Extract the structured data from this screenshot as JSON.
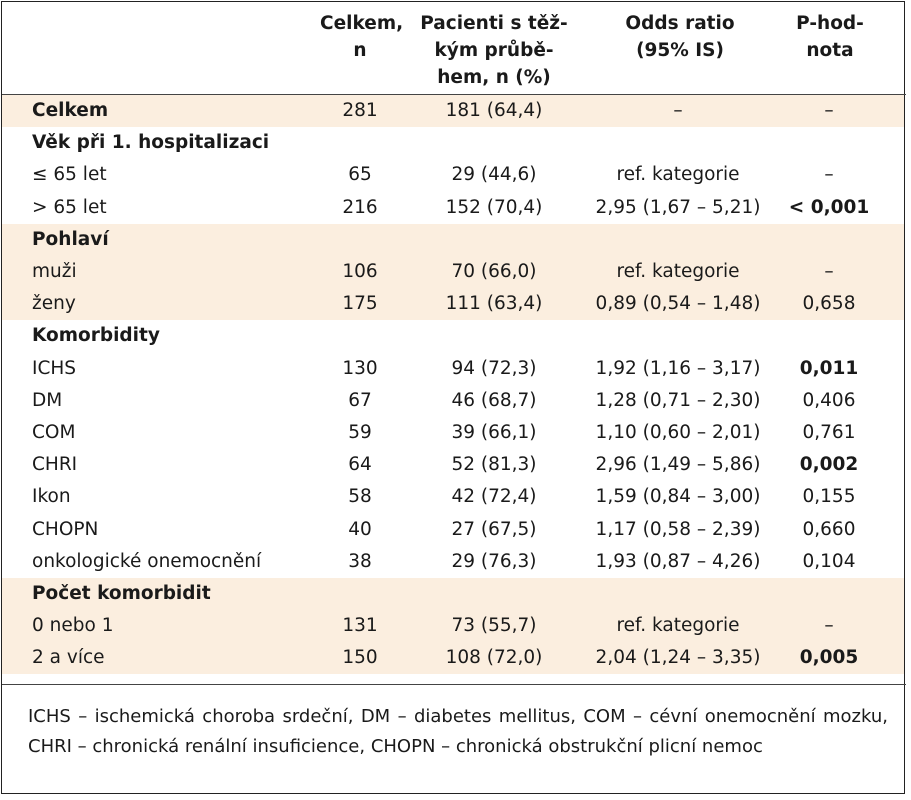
{
  "table": {
    "headers": {
      "col1": "Celkem,\nn",
      "col2": "Pacienti s těž-\nkým průbě-\nhem, n (%)",
      "col3": "Odds ratio\n(95% IS)",
      "col4": "P-hod-\nnota"
    },
    "rows": [
      {
        "label": "Celkem",
        "section": true,
        "shaded": true,
        "n": "281",
        "severe": "181 (64,4)",
        "or": "–",
        "p": "–",
        "p_bold": false
      },
      {
        "label": "Věk při 1. hospitalizaci",
        "section": true,
        "shaded": false,
        "n": "",
        "severe": "",
        "or": "",
        "p": "",
        "p_bold": false
      },
      {
        "label": "≤ 65 let",
        "section": false,
        "shaded": false,
        "n": "65",
        "severe": "29 (44,6)",
        "or": "ref. kategorie",
        "p": "–",
        "p_bold": false
      },
      {
        "label": "> 65 let",
        "section": false,
        "shaded": false,
        "n": "216",
        "severe": "152 (70,4)",
        "or": "2,95 (1,67 – 5,21)",
        "p": "< 0,001",
        "p_bold": true
      },
      {
        "label": "Pohlaví",
        "section": true,
        "shaded": true,
        "n": "",
        "severe": "",
        "or": "",
        "p": "",
        "p_bold": false
      },
      {
        "label": "muži",
        "section": false,
        "shaded": true,
        "n": "106",
        "severe": "70 (66,0)",
        "or": "ref. kategorie",
        "p": "–",
        "p_bold": false
      },
      {
        "label": "ženy",
        "section": false,
        "shaded": true,
        "n": "175",
        "severe": "111 (63,4)",
        "or": "0,89 (0,54 – 1,48)",
        "p": "0,658",
        "p_bold": false
      },
      {
        "label": "Komorbidity",
        "section": true,
        "shaded": false,
        "n": "",
        "severe": "",
        "or": "",
        "p": "",
        "p_bold": false
      },
      {
        "label": "ICHS",
        "section": false,
        "shaded": false,
        "n": "130",
        "severe": "94 (72,3)",
        "or": "1,92 (1,16 – 3,17)",
        "p": "0,011",
        "p_bold": true
      },
      {
        "label": "DM",
        "section": false,
        "shaded": false,
        "n": "67",
        "severe": "46 (68,7)",
        "or": "1,28 (0,71 – 2,30)",
        "p": "0,406",
        "p_bold": false
      },
      {
        "label": "COM",
        "section": false,
        "shaded": false,
        "n": "59",
        "severe": "39 (66,1)",
        "or": "1,10 (0,60 – 2,01)",
        "p": "0,761",
        "p_bold": false
      },
      {
        "label": "CHRI",
        "section": false,
        "shaded": false,
        "n": "64",
        "severe": "52 (81,3)",
        "or": "2,96 (1,49 – 5,86)",
        "p": "0,002",
        "p_bold": true
      },
      {
        "label": "Ikon",
        "section": false,
        "shaded": false,
        "n": "58",
        "severe": "42 (72,4)",
        "or": "1,59 (0,84 – 3,00)",
        "p": "0,155",
        "p_bold": false
      },
      {
        "label": "CHOPN",
        "section": false,
        "shaded": false,
        "n": "40",
        "severe": "27 (67,5)",
        "or": "1,17 (0,58 – 2,39)",
        "p": "0,660",
        "p_bold": false
      },
      {
        "label": "onkologické onemocnění",
        "section": false,
        "shaded": false,
        "n": "38",
        "severe": "29 (76,3)",
        "or": "1,93 (0,87 – 4,26)",
        "p": "0,104",
        "p_bold": false
      },
      {
        "label": "Počet komorbidit",
        "section": true,
        "shaded": true,
        "n": "",
        "severe": "",
        "or": "",
        "p": "",
        "p_bold": false
      },
      {
        "label": "0 nebo 1",
        "section": false,
        "shaded": true,
        "n": "131",
        "severe": "73 (55,7)",
        "or": "ref. kategorie",
        "p": "–",
        "p_bold": false
      },
      {
        "label": "2 a více",
        "section": false,
        "shaded": true,
        "n": "150",
        "severe": "108 (72,0)",
        "or": "2,04 (1,24 – 3,35)",
        "p": "0,005",
        "p_bold": true
      }
    ],
    "footnote": "ICHS – ischemická choroba srdeční, DM – diabetes mellitus, COM – cévní onemocnění mozku, CHRI – chronická renální insuficience, CHOPN – chronická obstrukční plicní nemoc"
  },
  "colors": {
    "shade": "#fbeedf",
    "text": "#1a1a1a",
    "border": "#222222"
  }
}
